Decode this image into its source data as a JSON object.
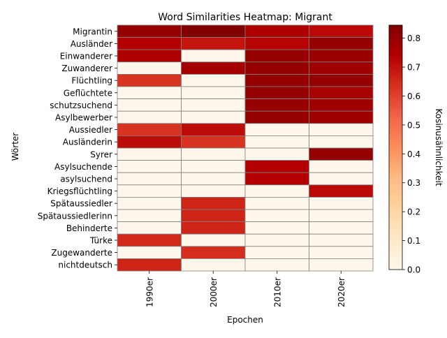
{
  "chart_data": {
    "type": "heatmap",
    "title": "Word Similarities Heatmap: Migrant",
    "xlabel": "Epochen",
    "ylabel": "Wörter",
    "x_categories": [
      "1990er",
      "2000er",
      "2010er",
      "2020er"
    ],
    "y_categories": [
      "Migrantin",
      "Ausländer",
      "Einwanderer",
      "Zuwanderer",
      "Flüchtling",
      "Geflüchtete",
      "schutzsuchend",
      "Asylbewerber",
      "Aussiedler",
      "Ausländerin",
      "Syrer",
      "Asylsuchende",
      "asylsuchend",
      "Kriegsflüchtling",
      "Spätaussiedler",
      "Spätaussiedlerinn",
      "Behinderte",
      "Türke",
      "Zugewanderte",
      "nichtdeutsch"
    ],
    "values": [
      [
        0.8,
        0.84,
        0.75,
        0.72
      ],
      [
        0.74,
        0.69,
        0.73,
        0.8
      ],
      [
        0.75,
        0.0,
        0.8,
        0.79
      ],
      [
        0.0,
        0.77,
        0.8,
        0.78
      ],
      [
        0.63,
        0.0,
        0.8,
        0.8
      ],
      [
        0.0,
        0.0,
        0.8,
        0.76
      ],
      [
        0.0,
        0.0,
        0.8,
        0.78
      ],
      [
        0.0,
        0.0,
        0.8,
        0.78
      ],
      [
        0.63,
        0.71,
        0.0,
        0.0
      ],
      [
        0.71,
        0.63,
        0.0,
        0.0
      ],
      [
        0.0,
        0.0,
        0.0,
        0.8
      ],
      [
        0.0,
        0.0,
        0.74,
        0.0
      ],
      [
        0.0,
        0.0,
        0.74,
        0.0
      ],
      [
        0.0,
        0.0,
        0.0,
        0.72
      ],
      [
        0.0,
        0.66,
        0.0,
        0.0
      ],
      [
        0.0,
        0.66,
        0.0,
        0.0
      ],
      [
        0.0,
        0.66,
        0.0,
        0.0
      ],
      [
        0.65,
        0.0,
        0.0,
        0.0
      ],
      [
        0.0,
        0.64,
        0.0,
        0.0
      ],
      [
        0.66,
        0.0,
        0.0,
        0.0
      ]
    ],
    "colorbar": {
      "label": "Kosinusähnlichkeit",
      "min": 0.0,
      "max": 0.845,
      "ticks": [
        "0.0",
        "0.1",
        "0.2",
        "0.3",
        "0.4",
        "0.5",
        "0.6",
        "0.7",
        "0.8"
      ],
      "colormap": "OrRd"
    },
    "grid": true,
    "cell_border_color": "#808080"
  }
}
